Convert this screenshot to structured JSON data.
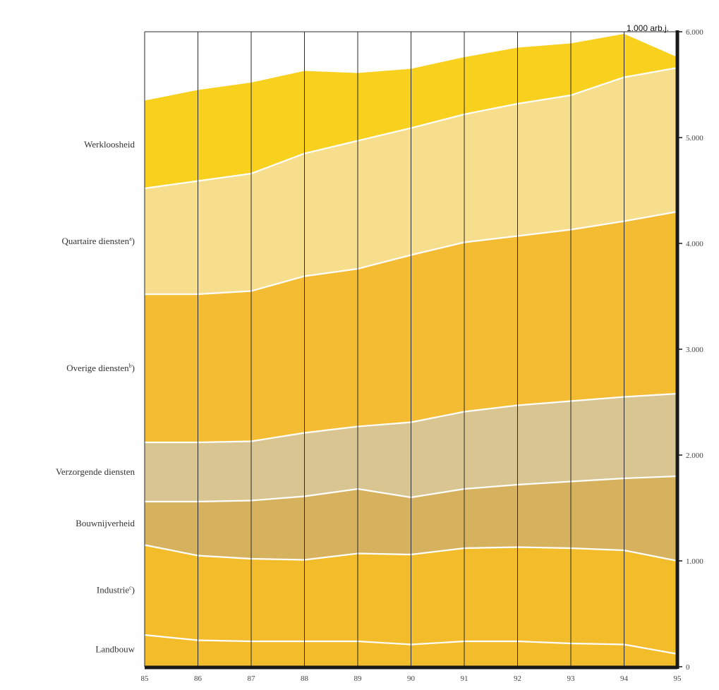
{
  "chart_data": {
    "type": "area",
    "title": "",
    "unit_label": "1.000 arb.j.",
    "xlabel": "",
    "ylabel": "",
    "x": [
      "85",
      "86",
      "87",
      "88",
      "89",
      "90",
      "91",
      "92",
      "93",
      "94",
      "95"
    ],
    "ylim": [
      0,
      6000
    ],
    "y_ticks": [
      0,
      1000,
      2000,
      3000,
      4000,
      5000,
      6000
    ],
    "y_tick_labels": [
      "0",
      "1.000",
      "2.000",
      "3.000",
      "4.000",
      "5.000",
      "6.000"
    ],
    "y_axis_side": "right",
    "grid": "vertical lines at each year",
    "stacked": true,
    "series": [
      {
        "name": "Landbouw",
        "color": "#F2BC2A",
        "values": [
          300,
          250,
          240,
          240,
          240,
          210,
          240,
          240,
          220,
          210,
          120
        ]
      },
      {
        "name": "Industrie",
        "name_superscript": "c",
        "name_suffix": ")",
        "color": "#F2BC2A",
        "values": [
          850,
          800,
          780,
          770,
          830,
          850,
          880,
          890,
          900,
          890,
          880
        ]
      },
      {
        "name": "Bouwnijverheid",
        "color": "#D6B25E",
        "values": [
          410,
          510,
          550,
          600,
          610,
          540,
          560,
          590,
          630,
          680,
          800
        ]
      },
      {
        "name": "Verzorgende diensten",
        "color": "#D8C591",
        "values": [
          560,
          560,
          560,
          600,
          590,
          710,
          730,
          750,
          760,
          770,
          780
        ]
      },
      {
        "name": "Overige diensten",
        "name_superscript": "b",
        "name_suffix": ")",
        "color": "#F3BC33",
        "values": [
          1400,
          1400,
          1420,
          1480,
          1490,
          1580,
          1600,
          1600,
          1620,
          1660,
          1720
        ]
      },
      {
        "name": "Quartaire diensten",
        "name_superscript": "a",
        "name_suffix": ")",
        "color": "#F6DE8C",
        "values": [
          1000,
          1070,
          1110,
          1160,
          1210,
          1200,
          1210,
          1250,
          1270,
          1360,
          1360
        ]
      },
      {
        "name": "Werkloosheid",
        "color": "#F8D11E",
        "values": [
          830,
          860,
          860,
          780,
          640,
          560,
          540,
          530,
          490,
          410,
          100
        ]
      }
    ]
  }
}
